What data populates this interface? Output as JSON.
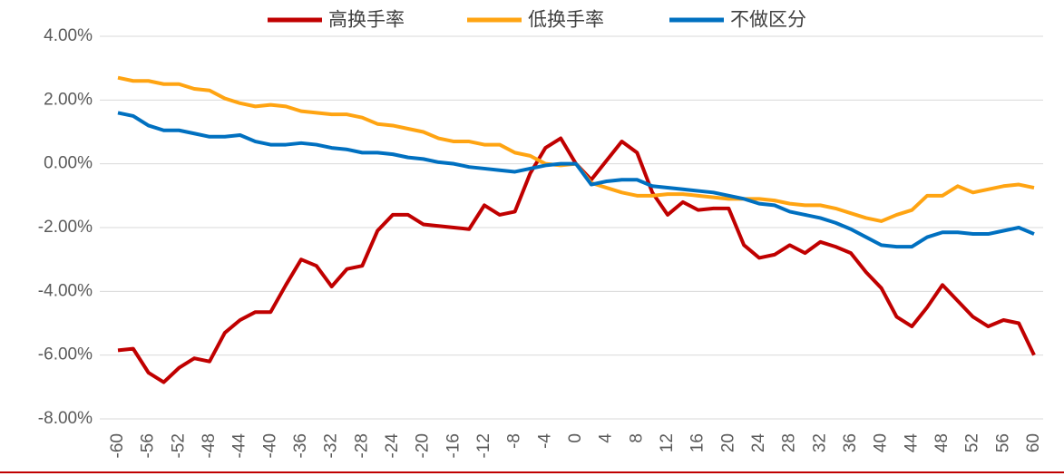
{
  "chart_data": {
    "type": "line",
    "x": [
      -60,
      -58,
      -56,
      -54,
      -52,
      -50,
      -48,
      -46,
      -44,
      -42,
      -40,
      -38,
      -36,
      -34,
      -32,
      -30,
      -28,
      -26,
      -24,
      -22,
      -20,
      -18,
      -16,
      -14,
      -12,
      -10,
      -8,
      -6,
      -4,
      -2,
      0,
      2,
      4,
      6,
      8,
      10,
      12,
      14,
      16,
      18,
      20,
      22,
      24,
      26,
      28,
      30,
      32,
      34,
      36,
      38,
      40,
      42,
      44,
      46,
      48,
      50,
      52,
      54,
      56,
      58,
      60
    ],
    "series": [
      {
        "name": "高换手率",
        "color": "#c00000",
        "values": [
          -5.85,
          -5.8,
          -6.55,
          -6.85,
          -6.4,
          -6.1,
          -6.2,
          -5.3,
          -4.9,
          -4.65,
          -4.65,
          -3.8,
          -3.0,
          -3.2,
          -3.85,
          -3.3,
          -3.2,
          -2.1,
          -1.6,
          -1.6,
          -1.9,
          -1.95,
          -2.0,
          -2.05,
          -1.3,
          -1.6,
          -1.5,
          -0.3,
          0.5,
          0.8,
          0.0,
          -0.5,
          0.1,
          0.7,
          0.35,
          -0.9,
          -1.6,
          -1.2,
          -1.45,
          -1.4,
          -1.4,
          -2.55,
          -2.95,
          -2.85,
          -2.55,
          -2.8,
          -2.45,
          -2.6,
          -2.8,
          -3.4,
          -3.9,
          -4.8,
          -5.1,
          -4.5,
          -3.8,
          -4.3,
          -4.8,
          -5.1,
          -4.9,
          -5.0,
          -6.0
        ]
      },
      {
        "name": "低换手率",
        "color": "#ffa412",
        "values": [
          2.7,
          2.6,
          2.6,
          2.5,
          2.5,
          2.35,
          2.3,
          2.05,
          1.9,
          1.8,
          1.85,
          1.8,
          1.65,
          1.6,
          1.55,
          1.55,
          1.45,
          1.25,
          1.2,
          1.1,
          1.0,
          0.8,
          0.7,
          0.7,
          0.6,
          0.6,
          0.35,
          0.25,
          0.0,
          -0.05,
          0.0,
          -0.6,
          -0.75,
          -0.9,
          -1.0,
          -1.0,
          -0.95,
          -0.95,
          -1.0,
          -1.05,
          -1.1,
          -1.1,
          -1.1,
          -1.15,
          -1.25,
          -1.3,
          -1.3,
          -1.4,
          -1.55,
          -1.7,
          -1.8,
          -1.6,
          -1.45,
          -1.0,
          -1.0,
          -0.7,
          -0.9,
          -0.8,
          -0.7,
          -0.65,
          -0.75
        ]
      },
      {
        "name": "不做区分",
        "color": "#0070c0",
        "values": [
          1.6,
          1.5,
          1.2,
          1.05,
          1.05,
          0.95,
          0.85,
          0.85,
          0.9,
          0.7,
          0.6,
          0.6,
          0.65,
          0.6,
          0.5,
          0.45,
          0.35,
          0.35,
          0.3,
          0.2,
          0.15,
          0.05,
          0.0,
          -0.1,
          -0.15,
          -0.2,
          -0.25,
          -0.15,
          -0.05,
          0.0,
          0.0,
          -0.65,
          -0.55,
          -0.5,
          -0.5,
          -0.7,
          -0.75,
          -0.8,
          -0.85,
          -0.9,
          -1.0,
          -1.1,
          -1.25,
          -1.3,
          -1.5,
          -1.6,
          -1.7,
          -1.85,
          -2.05,
          -2.3,
          -2.55,
          -2.6,
          -2.6,
          -2.3,
          -2.15,
          -2.15,
          -2.2,
          -2.2,
          -2.1,
          -2.0,
          -2.2
        ]
      }
    ],
    "xlim": [
      -60,
      60
    ],
    "xticks": [
      -60,
      -56,
      -52,
      -48,
      -44,
      -40,
      -36,
      -32,
      -28,
      -24,
      -20,
      -16,
      -12,
      -8,
      -4,
      0,
      4,
      8,
      12,
      16,
      20,
      24,
      28,
      32,
      36,
      40,
      44,
      48,
      52,
      56,
      60
    ],
    "ylim": [
      -8,
      4
    ],
    "yticks": [
      {
        "value": -8,
        "label": "-8.00%"
      },
      {
        "value": -6,
        "label": "-6.00%"
      },
      {
        "value": -4,
        "label": "-4.00%"
      },
      {
        "value": -2,
        "label": "-2.00%"
      },
      {
        "value": 0,
        "label": "0.00%"
      },
      {
        "value": 2,
        "label": "2.00%"
      },
      {
        "value": 4,
        "label": "4.00%"
      }
    ],
    "grid": true
  }
}
